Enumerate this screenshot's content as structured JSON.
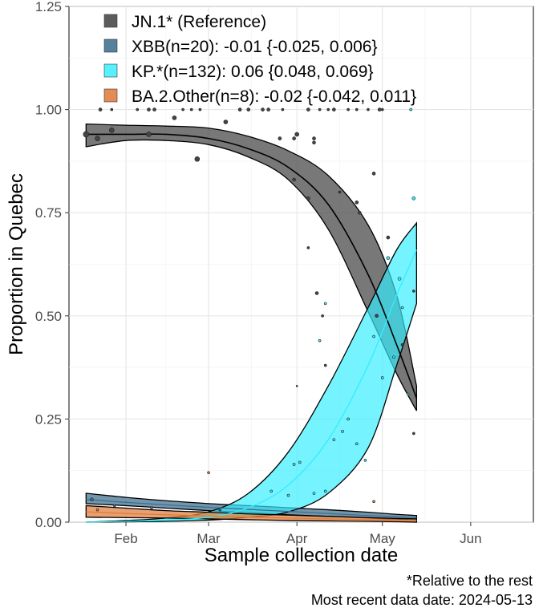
{
  "chart_data": {
    "type": "area",
    "xlabel": "Sample collection date",
    "ylabel": "Proportion in Quebec",
    "ylim": [
      0,
      1.25
    ],
    "xlim": [
      "2024-01-12",
      "2024-06-23"
    ],
    "x_ticks": [
      {
        "date": "2024-02-01",
        "label": "Feb"
      },
      {
        "date": "2024-03-01",
        "label": "Mar"
      },
      {
        "date": "2024-04-01",
        "label": "Apr"
      },
      {
        "date": "2024-05-01",
        "label": "May"
      },
      {
        "date": "2024-06-01",
        "label": "Jun"
      }
    ],
    "y_ticks": [
      {
        "value": 0,
        "label": "0.00"
      },
      {
        "value": 0.25,
        "label": "0.25"
      },
      {
        "value": 0.5,
        "label": "0.50"
      },
      {
        "value": 0.75,
        "label": "0.75"
      },
      {
        "value": 1.0,
        "label": "1.00"
      },
      {
        "value": 1.25,
        "label": "1.25"
      }
    ],
    "grid": true,
    "legend_position": "top-left",
    "captions": [
      "*Relative to the rest",
      "Most recent data date: 2024-05-13"
    ],
    "series": [
      {
        "name": "JN.1* (Reference)",
        "color": "#444444",
        "fill_opacity": 0.72,
        "x": [
          "2024-01-18",
          "2024-02-01",
          "2024-02-15",
          "2024-03-01",
          "2024-03-15",
          "2024-03-29",
          "2024-04-12",
          "2024-04-26",
          "2024-05-06",
          "2024-05-13"
        ],
        "fit": [
          0.94,
          0.94,
          0.94,
          0.93,
          0.905,
          0.86,
          0.77,
          0.6,
          0.43,
          0.3
        ],
        "lower": [
          0.91,
          0.925,
          0.925,
          0.915,
          0.885,
          0.83,
          0.71,
          0.51,
          0.36,
          0.27
        ],
        "upper": [
          0.965,
          0.962,
          0.96,
          0.955,
          0.935,
          0.9,
          0.84,
          0.72,
          0.55,
          0.33
        ],
        "points": [
          {
            "x": "2024-01-18",
            "y": 0.94,
            "r": 3.5
          },
          {
            "x": "2024-01-22",
            "y": 0.93,
            "r": 3
          },
          {
            "x": "2024-01-27",
            "y": 0.95,
            "r": 3
          },
          {
            "x": "2024-02-09",
            "y": 0.94,
            "r": 3
          },
          {
            "x": "2024-02-18",
            "y": 0.98,
            "r": 2.5
          },
          {
            "x": "2024-02-26",
            "y": 0.88,
            "r": 3
          },
          {
            "x": "2024-03-07",
            "y": 0.97,
            "r": 2.5
          },
          {
            "x": "2024-03-26",
            "y": 0.93,
            "r": 2
          },
          {
            "x": "2024-04-01",
            "y": 0.94,
            "r": 2.5
          },
          {
            "x": "2024-03-31",
            "y": 0.83,
            "r": 2
          },
          {
            "x": "2024-04-07",
            "y": 0.93,
            "r": 2
          },
          {
            "x": "2024-04-05",
            "y": 0.785,
            "r": 2
          },
          {
            "x": "2024-04-07",
            "y": 0.92,
            "r": 2
          },
          {
            "x": "2024-04-05",
            "y": 0.665,
            "r": 1.5
          },
          {
            "x": "2024-04-08",
            "y": 0.555,
            "r": 2
          },
          {
            "x": "2024-04-10",
            "y": 0.5,
            "r": 1.5
          },
          {
            "x": "2024-04-16",
            "y": 0.8,
            "r": 1.5
          },
          {
            "x": "2024-04-22",
            "y": 0.775,
            "r": 2
          },
          {
            "x": "2024-04-23",
            "y": 0.75,
            "r": 2
          },
          {
            "x": "2024-04-28",
            "y": 0.845,
            "r": 2
          },
          {
            "x": "2024-04-29",
            "y": 0.5,
            "r": 2
          },
          {
            "x": "2024-05-03",
            "y": 0.69,
            "r": 2
          },
          {
            "x": "2024-05-12",
            "y": 0.215,
            "r": 1.5
          },
          {
            "x": "2024-04-11",
            "y": 0.38,
            "r": 1.5
          },
          {
            "x": "2024-04-01",
            "y": 0.33,
            "r": 1
          },
          {
            "x": "2024-03-31",
            "y": 0.93,
            "r": 2
          },
          {
            "x": "2024-01-23",
            "y": 1.0,
            "r": 2
          },
          {
            "x": "2024-01-27",
            "y": 1.0,
            "r": 1.5
          },
          {
            "x": "2024-02-05",
            "y": 1.0,
            "r": 1.5
          },
          {
            "x": "2024-02-09",
            "y": 1.0,
            "r": 2
          },
          {
            "x": "2024-02-11",
            "y": 1.0,
            "r": 2
          },
          {
            "x": "2024-02-21",
            "y": 1.0,
            "r": 1.5
          },
          {
            "x": "2024-02-24",
            "y": 1.0,
            "r": 1.5
          },
          {
            "x": "2024-02-27",
            "y": 1.0,
            "r": 1.5
          },
          {
            "x": "2024-03-12",
            "y": 1.0,
            "r": 2
          },
          {
            "x": "2024-03-15",
            "y": 1.0,
            "r": 2
          },
          {
            "x": "2024-03-20",
            "y": 1.0,
            "r": 2
          },
          {
            "x": "2024-03-22",
            "y": 1.0,
            "r": 2
          },
          {
            "x": "2024-03-27",
            "y": 1.0,
            "r": 1.5
          },
          {
            "x": "2024-04-05",
            "y": 1.0,
            "r": 2
          },
          {
            "x": "2024-04-09",
            "y": 1.0,
            "r": 1.5
          },
          {
            "x": "2024-04-12",
            "y": 1.0,
            "r": 1.5
          },
          {
            "x": "2024-04-14",
            "y": 1.0,
            "r": 2
          },
          {
            "x": "2024-04-19",
            "y": 1.0,
            "r": 1.5
          },
          {
            "x": "2024-04-22",
            "y": 1.0,
            "r": 1.5
          },
          {
            "x": "2024-04-26",
            "y": 1.0,
            "r": 1.5
          },
          {
            "x": "2024-04-30",
            "y": 1.0,
            "r": 2
          },
          {
            "x": "2024-05-01",
            "y": 1.0,
            "r": 1.5
          },
          {
            "x": "2024-05-08",
            "y": 0.43,
            "r": 1.5
          },
          {
            "x": "2024-05-12",
            "y": 0.56,
            "r": 1.5
          }
        ]
      },
      {
        "name": "XBB(n=20): -0.01 {-0.025, 0.006}",
        "color": "#3d6e8e",
        "fill_opacity": 0.72,
        "x": [
          "2024-01-18",
          "2024-02-01",
          "2024-02-15",
          "2024-03-01",
          "2024-03-15",
          "2024-03-29",
          "2024-04-12",
          "2024-04-26",
          "2024-05-06",
          "2024-05-13"
        ],
        "fit": [
          0.055,
          0.048,
          0.042,
          0.036,
          0.031,
          0.026,
          0.021,
          0.016,
          0.013,
          0.011
        ],
        "lower": [
          0.045,
          0.04,
          0.034,
          0.028,
          0.023,
          0.018,
          0.014,
          0.01,
          0.007,
          0.005
        ],
        "upper": [
          0.07,
          0.06,
          0.052,
          0.045,
          0.04,
          0.035,
          0.03,
          0.024,
          0.019,
          0.016
        ],
        "points": [
          {
            "x": "2024-01-20",
            "y": 0.055,
            "r": 2
          },
          {
            "x": "2024-01-28",
            "y": 0.04,
            "r": 1.5
          },
          {
            "x": "2024-02-10",
            "y": 0.035,
            "r": 1.5
          },
          {
            "x": "2024-03-05",
            "y": 0.03,
            "r": 1.5
          }
        ]
      },
      {
        "name": "KP.*(n=132): 0.06 {0.048, 0.069}",
        "color": "#33eeff",
        "fill_opacity": 0.68,
        "x": [
          "2024-01-18",
          "2024-02-01",
          "2024-02-15",
          "2024-03-01",
          "2024-03-15",
          "2024-03-29",
          "2024-04-12",
          "2024-04-26",
          "2024-05-06",
          "2024-05-13"
        ],
        "fit": [
          0.0,
          0.002,
          0.005,
          0.012,
          0.035,
          0.09,
          0.2,
          0.38,
          0.55,
          0.66
        ],
        "lower": [
          0.0,
          0.001,
          0.002,
          0.005,
          0.012,
          0.025,
          0.07,
          0.18,
          0.38,
          0.53
        ],
        "upper": [
          0.0,
          0.004,
          0.01,
          0.025,
          0.07,
          0.17,
          0.33,
          0.52,
          0.66,
          0.725
        ],
        "points": [
          {
            "x": "2024-03-23",
            "y": 0.075,
            "r": 1.5
          },
          {
            "x": "2024-03-29",
            "y": 0.065,
            "r": 1.5
          },
          {
            "x": "2024-04-02",
            "y": 0.145,
            "r": 1.5
          },
          {
            "x": "2024-04-07",
            "y": 0.07,
            "r": 1.5
          },
          {
            "x": "2024-04-11",
            "y": 0.075,
            "r": 1.5
          },
          {
            "x": "2024-04-14",
            "y": 0.2,
            "r": 1.5
          },
          {
            "x": "2024-04-17",
            "y": 0.22,
            "r": 1.5
          },
          {
            "x": "2024-04-19",
            "y": 0.25,
            "r": 1.5
          },
          {
            "x": "2024-04-22",
            "y": 0.19,
            "r": 1.5
          },
          {
            "x": "2024-04-25",
            "y": 0.15,
            "r": 1.5
          },
          {
            "x": "2024-04-28",
            "y": 0.45,
            "r": 1.5
          },
          {
            "x": "2024-05-01",
            "y": 0.35,
            "r": 1.5
          },
          {
            "x": "2024-05-03",
            "y": 0.64,
            "r": 2
          },
          {
            "x": "2024-05-07",
            "y": 0.59,
            "r": 2
          },
          {
            "x": "2024-05-08",
            "y": 0.52,
            "r": 1.5
          },
          {
            "x": "2024-05-10",
            "y": 0.31,
            "r": 1.5
          },
          {
            "x": "2024-05-12",
            "y": 0.785,
            "r": 2
          },
          {
            "x": "2024-05-11",
            "y": 1.0,
            "r": 1.5
          },
          {
            "x": "2024-04-11",
            "y": 0.53,
            "r": 1.5
          },
          {
            "x": "2024-04-09",
            "y": 0.44,
            "r": 1.5
          },
          {
            "x": "2024-03-31",
            "y": 0.14,
            "r": 1.5
          },
          {
            "x": "2024-05-05",
            "y": 0.4,
            "r": 1.5
          }
        ]
      },
      {
        "name": "BA.2.Other(n=8): -0.02 {-0.042, 0.011}",
        "color": "#e07b39",
        "fill_opacity": 0.72,
        "x": [
          "2024-01-18",
          "2024-02-01",
          "2024-02-15",
          "2024-03-01",
          "2024-03-15",
          "2024-03-29",
          "2024-04-12",
          "2024-04-26",
          "2024-05-06",
          "2024-05-13"
        ],
        "fit": [
          0.025,
          0.021,
          0.018,
          0.015,
          0.012,
          0.01,
          0.008,
          0.006,
          0.005,
          0.004
        ],
        "lower": [
          0.012,
          0.011,
          0.01,
          0.008,
          0.006,
          0.004,
          0.003,
          0.002,
          0.001,
          0.0
        ],
        "upper": [
          0.04,
          0.034,
          0.028,
          0.024,
          0.02,
          0.017,
          0.014,
          0.011,
          0.009,
          0.008
        ],
        "points": [
          {
            "x": "2024-01-22",
            "y": 0.03,
            "r": 1.5
          },
          {
            "x": "2024-03-01",
            "y": 0.12,
            "r": 1.5
          },
          {
            "x": "2024-04-28",
            "y": 0.05,
            "r": 1.5
          }
        ]
      }
    ]
  }
}
